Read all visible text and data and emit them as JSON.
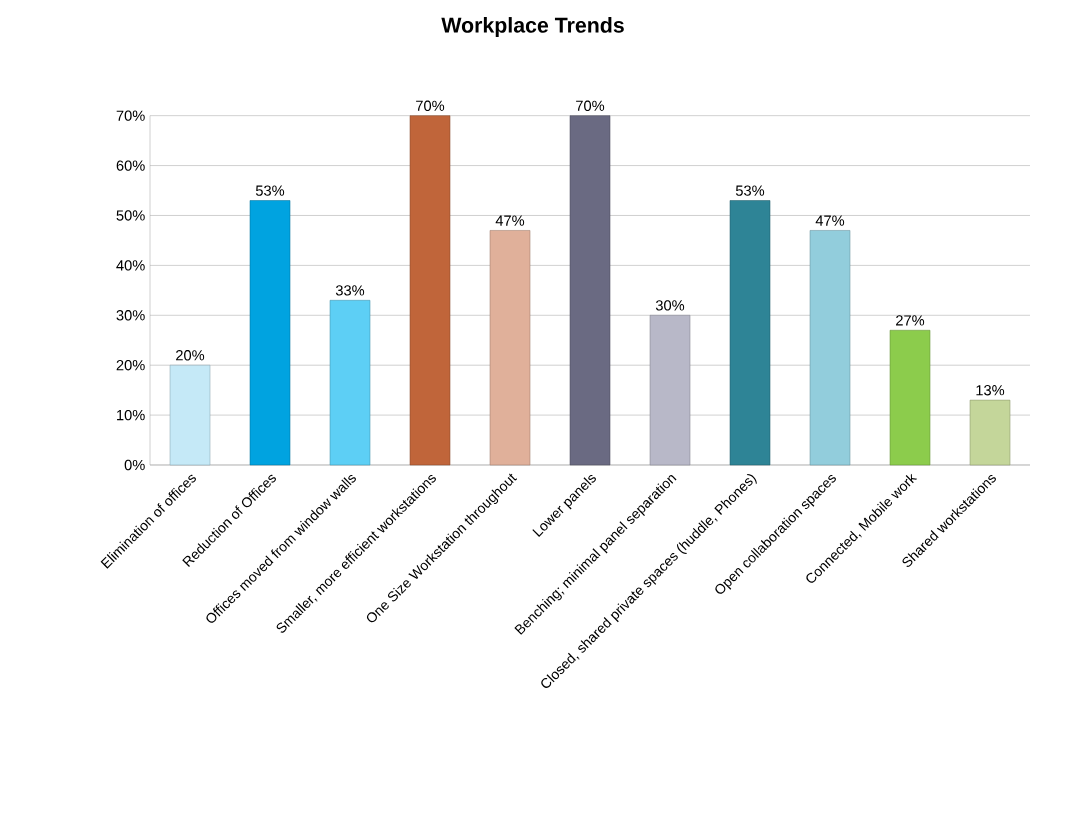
{
  "chart_data": {
    "type": "bar",
    "title": "Workplace Trends",
    "categories": [
      "Elimination of offices",
      "Reduction of Offices",
      "Offices moved from window walls",
      "Smaller, more efficient workstations",
      "One Size Workstation throughout",
      "Lower panels",
      "Benching; minimal panel separation",
      "Closed, shared private spaces (huddle, Phones)",
      "Open collaboration spaces",
      "Connected, Mobile work",
      "Shared workstations"
    ],
    "values": [
      20,
      53,
      33,
      70,
      47,
      70,
      30,
      53,
      47,
      27,
      13
    ],
    "value_labels": [
      "20%",
      "53%",
      "33%",
      "70%",
      "47%",
      "70%",
      "30%",
      "53%",
      "47%",
      "27%",
      "13%"
    ],
    "colors": [
      "#c5e9f7",
      "#00a3e0",
      "#5dcff5",
      "#c0653a",
      "#e0b09a",
      "#6a6a82",
      "#b8b8c8",
      "#2e8496",
      "#92cddc",
      "#8ccc4c",
      "#c4d69a"
    ],
    "ylim": [
      0,
      70
    ],
    "yticks": [
      {
        "value": 0,
        "label": "0%"
      },
      {
        "value": 10,
        "label": "10%"
      },
      {
        "value": 20,
        "label": "20%"
      },
      {
        "value": 30,
        "label": "30%"
      },
      {
        "value": 40,
        "label": "40%"
      },
      {
        "value": 50,
        "label": "50%"
      },
      {
        "value": 60,
        "label": "60%"
      },
      {
        "value": 70,
        "label": "70%"
      }
    ],
    "grid": "y"
  }
}
